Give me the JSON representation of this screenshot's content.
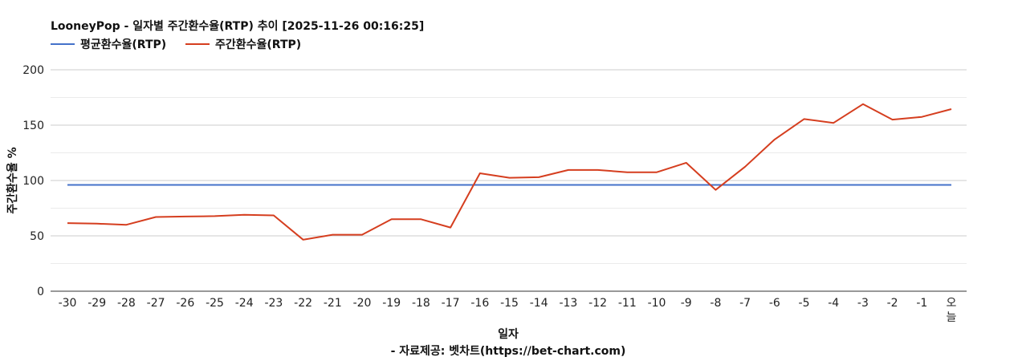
{
  "chart_data": {
    "type": "line",
    "title": "LooneyPop - 일자별 주간환수율(RTP) 추이 [2025-11-26 00:16:25]",
    "xlabel": "일자",
    "ylabel": "주간환수율 %",
    "source": "- 자료제공: 벳차트(https://bet-chart.com)",
    "ylim": [
      0,
      200
    ],
    "yticks": [
      "0",
      "50",
      "100",
      "150",
      "200"
    ],
    "grid": true,
    "legend_position": "top-left",
    "categories": [
      "-30",
      "-29",
      "-28",
      "-27",
      "-26",
      "-25",
      "-24",
      "-23",
      "-22",
      "-21",
      "-20",
      "-19",
      "-18",
      "-17",
      "-16",
      "-15",
      "-14",
      "-13",
      "-12",
      "-11",
      "-10",
      "-9",
      "-8",
      "-7",
      "-6",
      "-5",
      "-4",
      "-3",
      "-2",
      "-1",
      "오늘"
    ],
    "series": [
      {
        "name": "평균환수율(RTP)",
        "color": "#4472ca",
        "values": [
          96,
          96,
          96,
          96,
          96,
          96,
          96,
          96,
          96,
          96,
          96,
          96,
          96,
          96,
          96,
          96,
          96,
          96,
          96,
          96,
          96,
          96,
          96,
          96,
          96,
          96,
          96,
          96,
          96,
          96,
          96
        ]
      },
      {
        "name": "주간환수율(RTP)",
        "color": "#d53e1f",
        "values": [
          61.5,
          61,
          60,
          67,
          67.5,
          67.8,
          69,
          68.5,
          46.5,
          51,
          51,
          65,
          65,
          57.5,
          106.5,
          102.5,
          103,
          109.5,
          109.5,
          107.5,
          107.5,
          116,
          91.5,
          112.5,
          137,
          155.5,
          152,
          169,
          155,
          157.5,
          164.5
        ]
      }
    ]
  }
}
